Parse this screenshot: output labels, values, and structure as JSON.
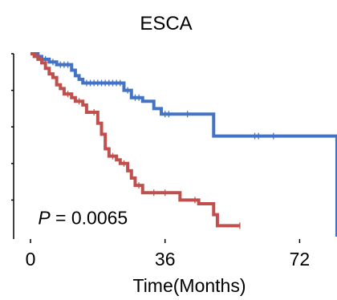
{
  "chart_data": {
    "type": "line",
    "title": "ESCA",
    "xlabel": "Time(Months)",
    "ylabel": "",
    "xlim": [
      0,
      82
    ],
    "ylim": [
      0,
      1
    ],
    "x_ticks": [
      0,
      36,
      72
    ],
    "x_tick_labels": [
      "0",
      "36",
      "72"
    ],
    "y_ticks": [
      0.2,
      0.4,
      0.6,
      0.8,
      1.0
    ],
    "annotation": {
      "prefix": "P",
      "text": " = 0.0065",
      "x": 2,
      "y": 0.05
    },
    "series": [
      {
        "color": "#4472C4",
        "steps": [
          [
            0,
            1.0
          ],
          [
            2,
            0.985
          ],
          [
            3,
            0.97
          ],
          [
            5,
            0.955
          ],
          [
            7,
            0.94
          ],
          [
            11,
            0.91
          ],
          [
            12,
            0.88
          ],
          [
            13,
            0.86
          ],
          [
            14,
            0.84
          ],
          [
            25,
            0.8
          ],
          [
            27,
            0.76
          ],
          [
            30,
            0.74
          ],
          [
            33,
            0.7
          ],
          [
            35,
            0.67
          ],
          [
            49,
            0.55
          ],
          [
            82,
            0.0
          ]
        ],
        "censor": [
          4,
          6,
          8,
          9,
          10,
          15,
          16,
          17,
          18,
          19,
          20,
          21,
          22,
          23,
          24,
          26,
          28,
          29,
          36,
          37,
          42,
          60,
          61,
          65
        ]
      },
      {
        "color": "#C0504D",
        "steps": [
          [
            0,
            1.0
          ],
          [
            1,
            0.985
          ],
          [
            2,
            0.97
          ],
          [
            3,
            0.95
          ],
          [
            4,
            0.92
          ],
          [
            5,
            0.89
          ],
          [
            6,
            0.87
          ],
          [
            7,
            0.83
          ],
          [
            8,
            0.81
          ],
          [
            9,
            0.78
          ],
          [
            11,
            0.76
          ],
          [
            12,
            0.74
          ],
          [
            14,
            0.72
          ],
          [
            15,
            0.68
          ],
          [
            18,
            0.62
          ],
          [
            19,
            0.56
          ],
          [
            20,
            0.48
          ],
          [
            21,
            0.44
          ],
          [
            23,
            0.42
          ],
          [
            24,
            0.4
          ],
          [
            26,
            0.36
          ],
          [
            27,
            0.32
          ],
          [
            28,
            0.28
          ],
          [
            30,
            0.24
          ],
          [
            40,
            0.2
          ],
          [
            45,
            0.18
          ],
          [
            49,
            0.12
          ],
          [
            50,
            0.06
          ]
        ],
        "end": 56,
        "censor": [
          10,
          13,
          17,
          22,
          25,
          29,
          33,
          36,
          44,
          56
        ]
      }
    ]
  }
}
